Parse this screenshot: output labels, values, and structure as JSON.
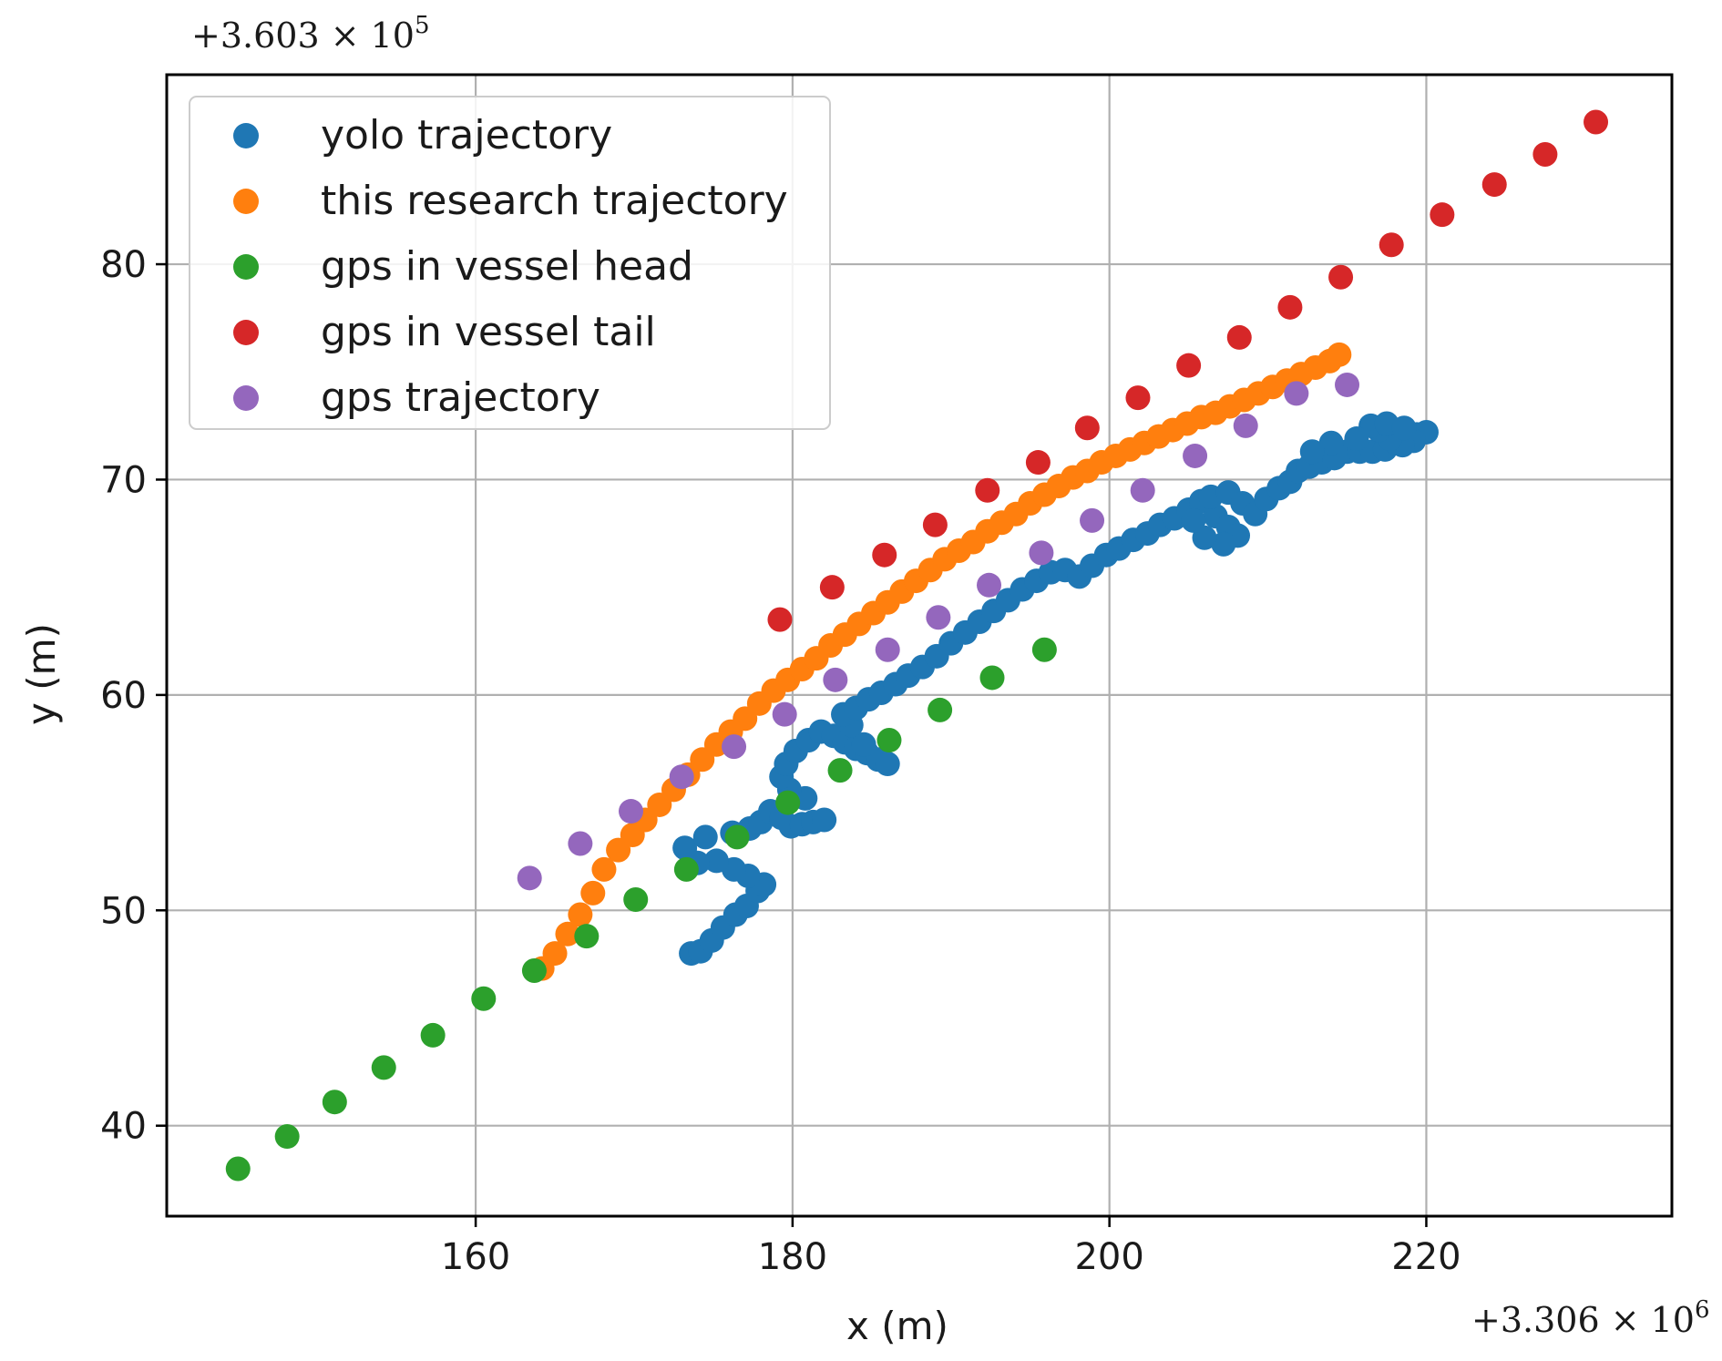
{
  "chart_data": {
    "type": "scatter",
    "xlabel": "x (m)",
    "ylabel": "y (m)",
    "x_ticks": [
      160,
      180,
      200,
      220
    ],
    "y_ticks": [
      40,
      50,
      60,
      70,
      80
    ],
    "xlim": [
      140.5,
      235.5
    ],
    "ylim": [
      35.8,
      88.8
    ],
    "x_offset_label": "+3.306 × 10",
    "x_offset_exp": "6",
    "y_offset_label": "+3.603 × 10",
    "y_offset_exp": "5",
    "grid": true,
    "legend_position": "upper left",
    "series": [
      {
        "name": "yolo trajectory",
        "color": "#1f77b4",
        "points": [
          [
            173.6,
            48.0
          ],
          [
            174.2,
            48.1
          ],
          [
            174.9,
            48.6
          ],
          [
            175.6,
            49.2
          ],
          [
            176.4,
            49.8
          ],
          [
            177.1,
            50.2
          ],
          [
            177.8,
            50.9
          ],
          [
            178.2,
            51.2
          ],
          [
            177.2,
            51.6
          ],
          [
            176.3,
            51.9
          ],
          [
            175.2,
            52.3
          ],
          [
            174.0,
            52.2
          ],
          [
            173.2,
            52.9
          ],
          [
            174.5,
            53.4
          ],
          [
            176.2,
            53.6
          ],
          [
            177.3,
            53.8
          ],
          [
            178.0,
            54.1
          ],
          [
            178.6,
            54.6
          ],
          [
            179.3,
            54.3
          ],
          [
            179.9,
            53.9
          ],
          [
            180.6,
            54.0
          ],
          [
            181.3,
            54.1
          ],
          [
            182.0,
            54.2
          ],
          [
            180.8,
            55.2
          ],
          [
            179.8,
            55.6
          ],
          [
            179.3,
            56.2
          ],
          [
            179.6,
            56.8
          ],
          [
            180.2,
            57.4
          ],
          [
            181.0,
            57.9
          ],
          [
            181.8,
            58.3
          ],
          [
            182.6,
            58.1
          ],
          [
            183.3,
            57.8
          ],
          [
            184.0,
            57.5
          ],
          [
            184.7,
            57.3
          ],
          [
            185.4,
            57.0
          ],
          [
            186.0,
            56.8
          ],
          [
            184.5,
            57.7
          ],
          [
            183.7,
            58.6
          ],
          [
            183.2,
            59.1
          ],
          [
            184.0,
            59.4
          ],
          [
            184.8,
            59.8
          ],
          [
            185.6,
            60.1
          ],
          [
            186.5,
            60.5
          ],
          [
            187.3,
            60.9
          ],
          [
            188.2,
            61.3
          ],
          [
            189.1,
            61.8
          ],
          [
            190.0,
            62.4
          ],
          [
            190.9,
            62.9
          ],
          [
            191.8,
            63.4
          ],
          [
            192.7,
            63.9
          ],
          [
            193.6,
            64.4
          ],
          [
            194.5,
            64.9
          ],
          [
            195.4,
            65.3
          ],
          [
            196.3,
            65.7
          ],
          [
            197.2,
            65.8
          ],
          [
            198.1,
            65.5
          ],
          [
            198.9,
            66.0
          ],
          [
            199.8,
            66.5
          ],
          [
            200.6,
            66.8
          ],
          [
            201.5,
            67.2
          ],
          [
            202.4,
            67.5
          ],
          [
            203.2,
            67.9
          ],
          [
            204.1,
            68.2
          ],
          [
            205.0,
            68.6
          ],
          [
            205.8,
            69.0
          ],
          [
            206.7,
            68.3
          ],
          [
            207.5,
            67.8
          ],
          [
            208.1,
            67.4
          ],
          [
            207.2,
            67.0
          ],
          [
            206.0,
            67.3
          ],
          [
            205.3,
            68.1
          ],
          [
            206.4,
            69.2
          ],
          [
            207.5,
            69.4
          ],
          [
            208.4,
            68.9
          ],
          [
            209.2,
            68.4
          ],
          [
            209.9,
            69.1
          ],
          [
            210.7,
            69.6
          ],
          [
            211.4,
            69.9
          ],
          [
            211.9,
            70.4
          ],
          [
            212.6,
            70.6
          ],
          [
            213.4,
            70.8
          ],
          [
            214.2,
            71.0
          ],
          [
            215.0,
            71.3
          ],
          [
            215.8,
            71.3
          ],
          [
            216.6,
            71.3
          ],
          [
            217.4,
            71.4
          ],
          [
            218.1,
            71.7
          ],
          [
            218.8,
            72.0
          ],
          [
            219.4,
            72.1
          ],
          [
            220.0,
            72.2
          ],
          [
            219.2,
            71.8
          ],
          [
            218.5,
            71.6
          ],
          [
            217.7,
            71.9
          ],
          [
            217.0,
            72.3
          ],
          [
            216.5,
            72.5
          ],
          [
            217.5,
            72.6
          ],
          [
            218.6,
            72.4
          ],
          [
            215.6,
            71.9
          ],
          [
            214.0,
            71.7
          ],
          [
            212.8,
            71.3
          ]
        ]
      },
      {
        "name": "this research trajectory",
        "color": "#ff7f0e",
        "points": [
          [
            164.2,
            47.3
          ],
          [
            165.0,
            48.0
          ],
          [
            165.8,
            48.9
          ],
          [
            166.6,
            49.8
          ],
          [
            167.4,
            50.8
          ],
          [
            168.1,
            51.9
          ],
          [
            169.0,
            52.8
          ],
          [
            169.9,
            53.5
          ],
          [
            170.7,
            54.2
          ],
          [
            171.6,
            54.9
          ],
          [
            172.5,
            55.6
          ],
          [
            173.4,
            56.3
          ],
          [
            174.3,
            57.0
          ],
          [
            175.2,
            57.7
          ],
          [
            176.1,
            58.3
          ],
          [
            177.0,
            58.9
          ],
          [
            177.9,
            59.6
          ],
          [
            178.8,
            60.2
          ],
          [
            179.7,
            60.7
          ],
          [
            180.6,
            61.2
          ],
          [
            181.5,
            61.7
          ],
          [
            182.4,
            62.3
          ],
          [
            183.3,
            62.8
          ],
          [
            184.2,
            63.3
          ],
          [
            185.1,
            63.8
          ],
          [
            186.0,
            64.3
          ],
          [
            186.9,
            64.8
          ],
          [
            187.8,
            65.3
          ],
          [
            188.7,
            65.8
          ],
          [
            189.6,
            66.3
          ],
          [
            190.5,
            66.7
          ],
          [
            191.4,
            67.1
          ],
          [
            192.3,
            67.6
          ],
          [
            193.2,
            68.0
          ],
          [
            194.1,
            68.4
          ],
          [
            195.0,
            68.9
          ],
          [
            195.9,
            69.3
          ],
          [
            196.8,
            69.7
          ],
          [
            197.7,
            70.1
          ],
          [
            198.6,
            70.4
          ],
          [
            199.5,
            70.8
          ],
          [
            200.4,
            71.1
          ],
          [
            201.3,
            71.4
          ],
          [
            202.2,
            71.7
          ],
          [
            203.1,
            72.0
          ],
          [
            204.0,
            72.3
          ],
          [
            204.9,
            72.6
          ],
          [
            205.8,
            72.9
          ],
          [
            206.7,
            73.1
          ],
          [
            207.6,
            73.4
          ],
          [
            208.5,
            73.7
          ],
          [
            209.4,
            74.0
          ],
          [
            210.3,
            74.3
          ],
          [
            211.2,
            74.6
          ],
          [
            212.1,
            74.9
          ],
          [
            213.0,
            75.2
          ],
          [
            213.9,
            75.5
          ],
          [
            214.5,
            75.8
          ]
        ]
      },
      {
        "name": "gps in vessel head",
        "color": "#2ca02c",
        "points": [
          [
            145.0,
            38.0
          ],
          [
            148.1,
            39.5
          ],
          [
            151.1,
            41.1
          ],
          [
            154.2,
            42.7
          ],
          [
            157.3,
            44.2
          ],
          [
            160.5,
            45.9
          ],
          [
            163.7,
            47.2
          ],
          [
            167.0,
            48.8
          ],
          [
            170.1,
            50.5
          ],
          [
            173.3,
            51.9
          ],
          [
            176.5,
            53.4
          ],
          [
            179.7,
            55.0
          ],
          [
            183.0,
            56.5
          ],
          [
            186.1,
            57.9
          ],
          [
            189.3,
            59.3
          ],
          [
            192.6,
            60.8
          ],
          [
            195.9,
            62.1
          ]
        ]
      },
      {
        "name": "gps in vessel tail",
        "color": "#d62728",
        "points": [
          [
            179.2,
            63.5
          ],
          [
            182.5,
            65.0
          ],
          [
            185.8,
            66.5
          ],
          [
            189.0,
            67.9
          ],
          [
            192.3,
            69.5
          ],
          [
            195.5,
            70.8
          ],
          [
            198.6,
            72.4
          ],
          [
            201.8,
            73.8
          ],
          [
            205.0,
            75.3
          ],
          [
            208.2,
            76.6
          ],
          [
            211.4,
            78.0
          ],
          [
            214.6,
            79.4
          ],
          [
            217.8,
            80.9
          ],
          [
            221.0,
            82.3
          ],
          [
            224.3,
            83.7
          ],
          [
            227.5,
            85.1
          ],
          [
            230.7,
            86.6
          ]
        ]
      },
      {
        "name": "gps trajectory",
        "color": "#9467bd",
        "points": [
          [
            163.4,
            51.5
          ],
          [
            166.6,
            53.1
          ],
          [
            169.8,
            54.6
          ],
          [
            173.0,
            56.2
          ],
          [
            176.3,
            57.6
          ],
          [
            179.5,
            59.1
          ],
          [
            182.7,
            60.7
          ],
          [
            186.0,
            62.1
          ],
          [
            189.2,
            63.6
          ],
          [
            192.4,
            65.1
          ],
          [
            195.7,
            66.6
          ],
          [
            198.9,
            68.1
          ],
          [
            202.1,
            69.5
          ],
          [
            205.4,
            71.1
          ],
          [
            208.6,
            72.5
          ],
          [
            211.8,
            74.0
          ],
          [
            215.0,
            74.4
          ]
        ]
      }
    ]
  }
}
